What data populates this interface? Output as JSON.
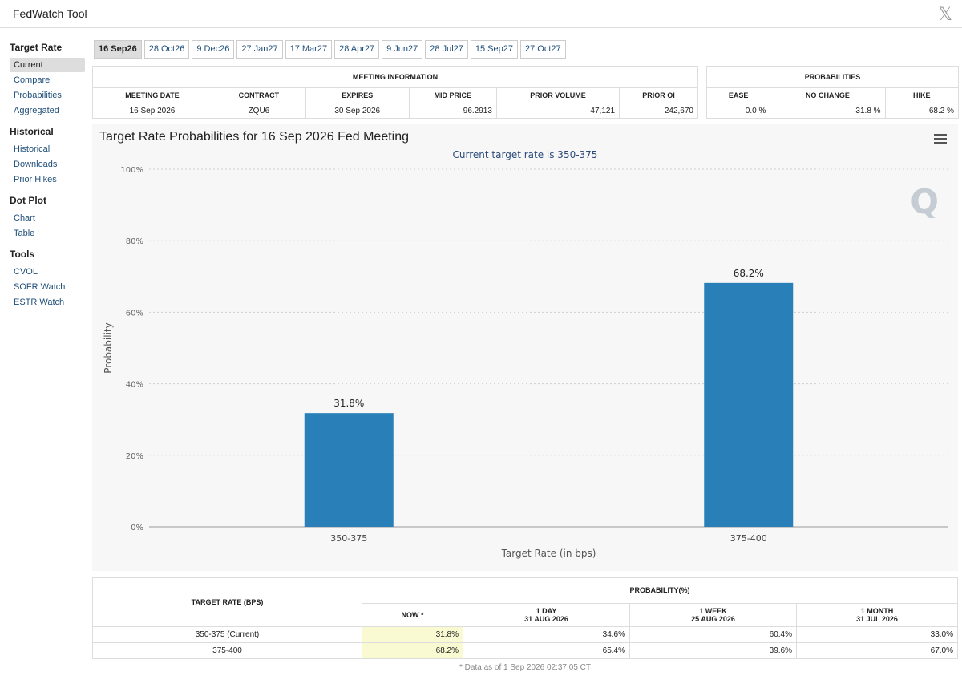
{
  "app": {
    "title": "FedWatch Tool",
    "close_icon": "x-logo-icon"
  },
  "sidebar": [
    {
      "heading": "Target Rate",
      "items": [
        "Current",
        "Compare",
        "Probabilities",
        "Aggregated"
      ]
    },
    {
      "heading": "Historical",
      "items": [
        "Historical",
        "Downloads",
        "Prior Hikes"
      ]
    },
    {
      "heading": "Dot Plot",
      "items": [
        "Chart",
        "Table"
      ]
    },
    {
      "heading": "Tools",
      "items": [
        "CVOL",
        "SOFR Watch",
        "ESTR Watch"
      ]
    }
  ],
  "tabs": [
    "16 Sep26",
    "28 Oct26",
    "9 Dec26",
    "27 Jan27",
    "17 Mar27",
    "28 Apr27",
    "9 Jun27",
    "28 Jul27",
    "15 Sep27",
    "27 Oct27"
  ],
  "meeting_info": {
    "title": "MEETING INFORMATION",
    "headers": [
      "MEETING DATE",
      "CONTRACT",
      "EXPIRES",
      "MID PRICE",
      "PRIOR VOLUME",
      "PRIOR OI"
    ],
    "values": [
      "16 Sep 2026",
      "ZQU6",
      "30 Sep 2026",
      "96.2913",
      "47,121",
      "242,670"
    ]
  },
  "probabilities": {
    "title": "PROBABILITIES",
    "headers": [
      "EASE",
      "NO CHANGE",
      "HIKE"
    ],
    "values": [
      "0.0 %",
      "31.8 %",
      "68.2 %"
    ]
  },
  "chart": {
    "title": "Target Rate Probabilities for 16 Sep 2026 Fed Meeting",
    "subtitle": "Current target rate is 350-375",
    "logo_text": "Q"
  },
  "chart_data": {
    "type": "bar",
    "categories": [
      "350-375",
      "375-400"
    ],
    "values": [
      31.8,
      68.2
    ],
    "data_labels": [
      "31.8%",
      "68.2%"
    ],
    "xlabel": "Target Rate (in bps)",
    "ylabel": "Probability",
    "ylim": [
      0,
      100
    ],
    "yticks": [
      "0%",
      "20%",
      "40%",
      "60%",
      "80%",
      "100%"
    ],
    "grid": true,
    "bar_color": "#2980b9"
  },
  "prob_table": {
    "col_target": "TARGET RATE (BPS)",
    "col_group": "PROBABILITY(%)",
    "col_now": "NOW *",
    "col_day": "1 DAY",
    "col_day_date": "31 AUG 2026",
    "col_week": "1 WEEK",
    "col_week_date": "25 AUG 2026",
    "col_month": "1 MONTH",
    "col_month_date": "31 JUL 2026",
    "rows": [
      {
        "rate": "350-375 (Current)",
        "now": "31.8%",
        "day": "34.6%",
        "week": "60.4%",
        "month": "33.0%"
      },
      {
        "rate": "375-400",
        "now": "68.2%",
        "day": "65.4%",
        "week": "39.6%",
        "month": "67.0%"
      }
    ],
    "footnote": "* Data as of 1 Sep 2026 02:37:05 CT"
  }
}
